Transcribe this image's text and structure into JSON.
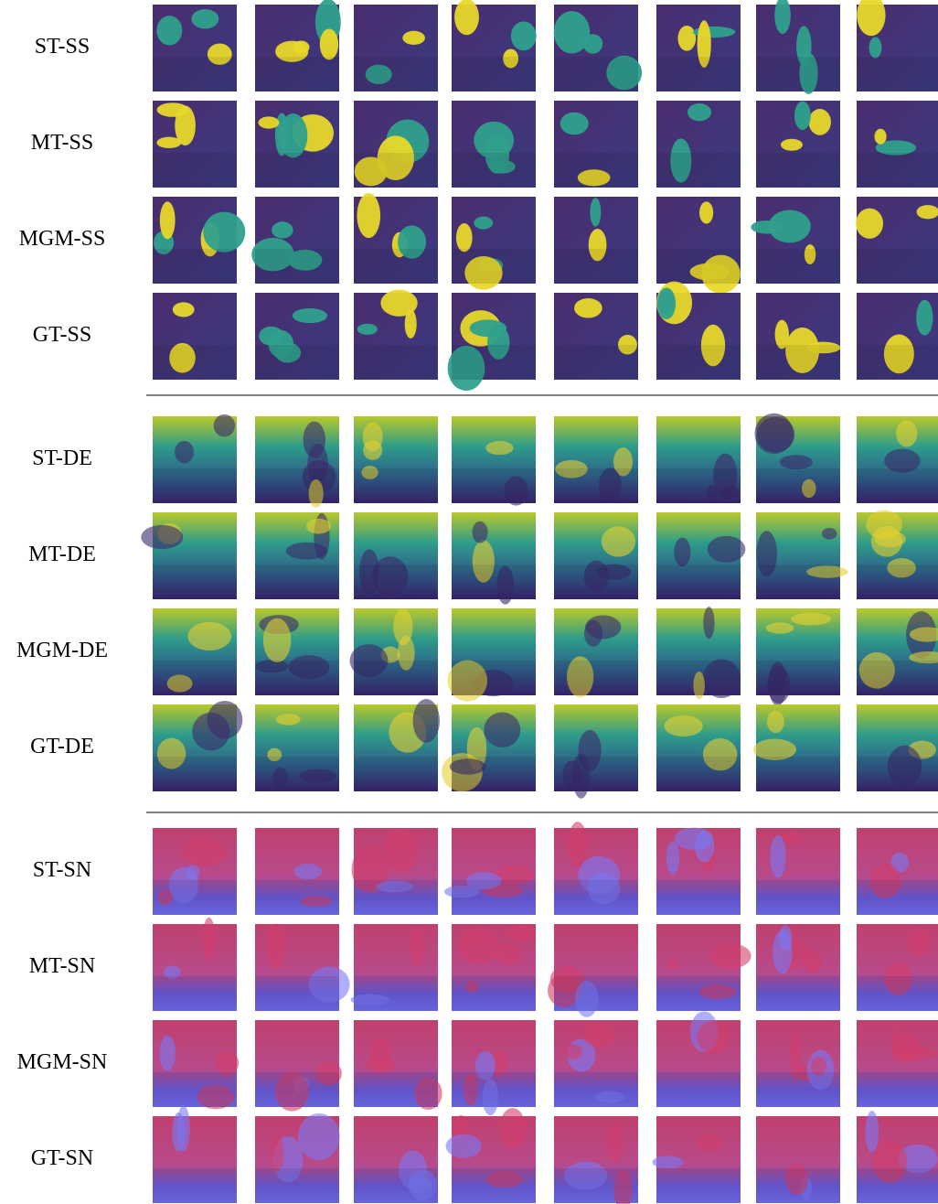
{
  "figure": {
    "row_labels": [
      "ST-SS",
      "MT-SS",
      "MGM-SS",
      "GT-SS",
      "ST-DE",
      "MT-DE",
      "MGM-DE",
      "GT-DE",
      "ST-SN",
      "MT-SN",
      "MGM-SN",
      "GT-SN"
    ]
  }
}
